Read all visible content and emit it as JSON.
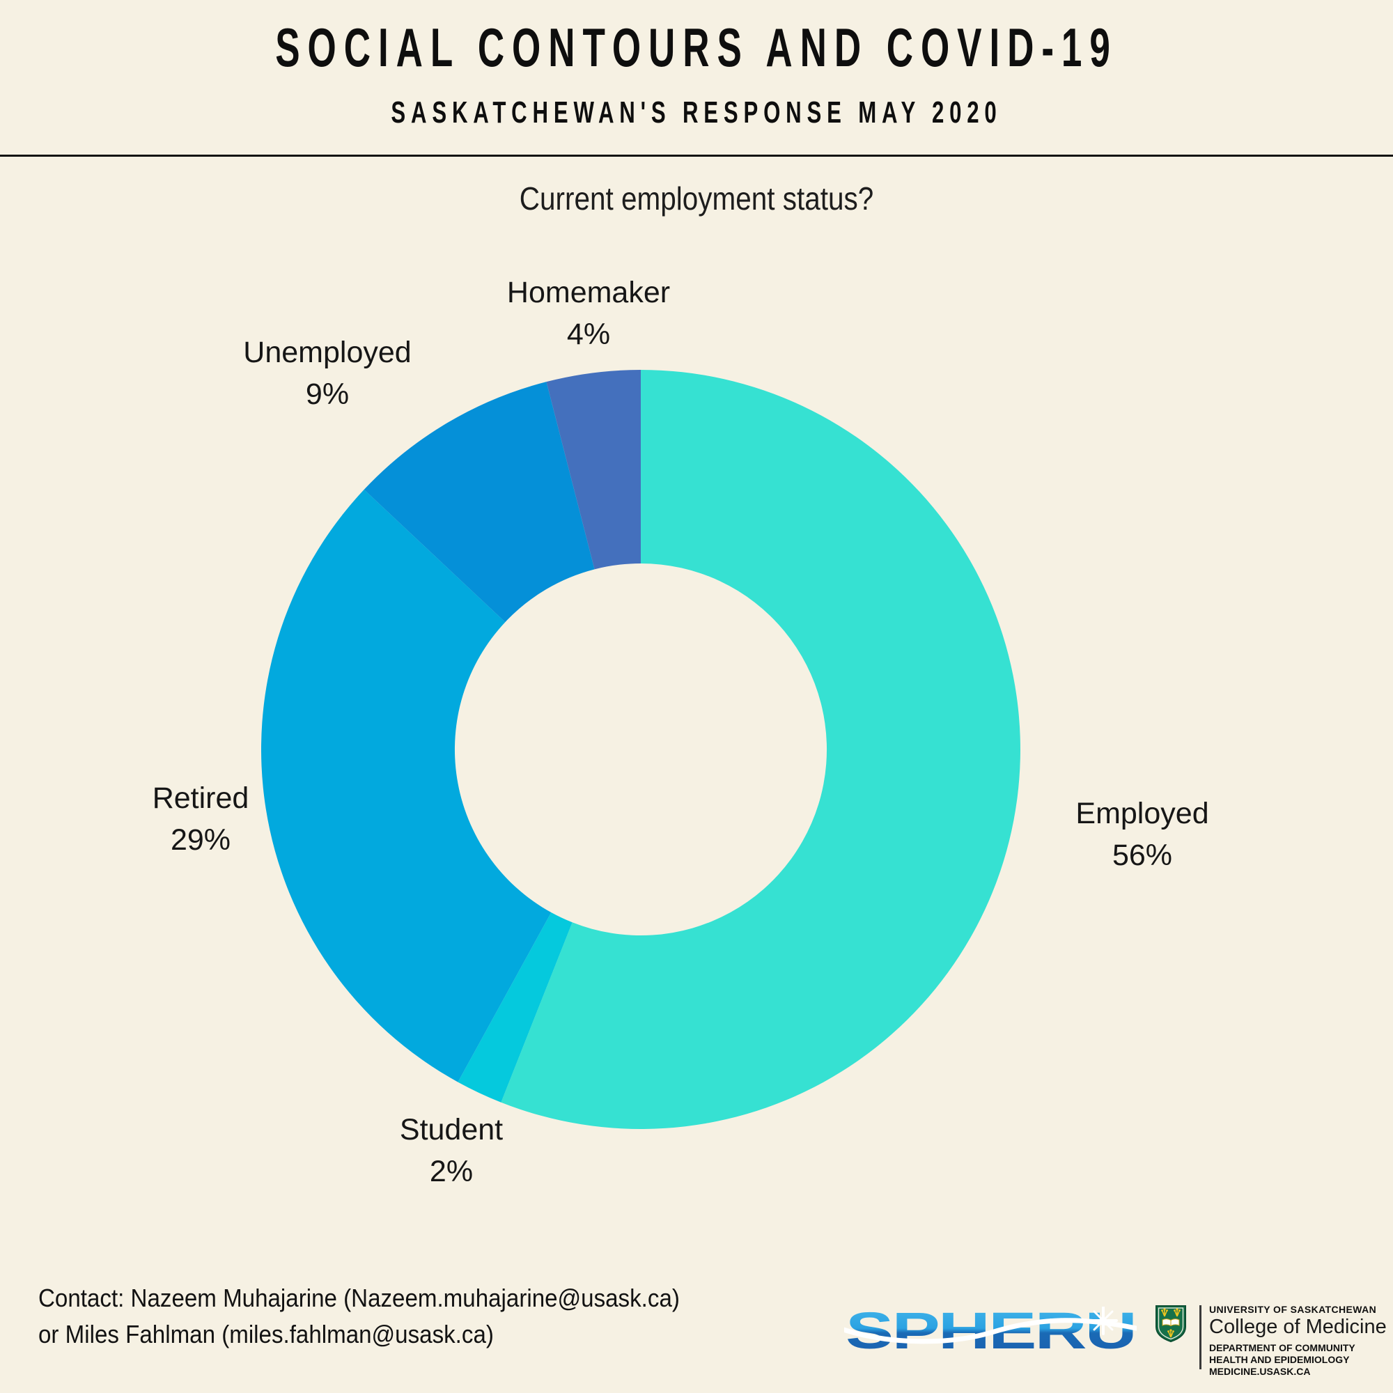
{
  "header": {
    "title": "SOCIAL CONTOURS AND COVID-19",
    "subtitle": "SASKATCHEWAN'S RESPONSE MAY 2020"
  },
  "chart_data": {
    "type": "pie",
    "donut": true,
    "title": "Current employment status?",
    "start_angle": "top",
    "direction": "clockwise",
    "hole_ratio": 0.49,
    "background": "#f6f1e3",
    "slices": [
      {
        "label": "Employed",
        "value_pct": 56,
        "pct_label": "56%",
        "color": "#36e1d2"
      },
      {
        "label": "Student",
        "value_pct": 2,
        "pct_label": "2%",
        "color": "#05c9dd"
      },
      {
        "label": "Retired",
        "value_pct": 29,
        "pct_label": "29%",
        "color": "#02a9de"
      },
      {
        "label": "Unemployed",
        "value_pct": 9,
        "pct_label": "9%",
        "color": "#0590d8"
      },
      {
        "label": "Homemaker",
        "value_pct": 4,
        "pct_label": "4%",
        "color": "#4470bd"
      }
    ]
  },
  "footer": {
    "contact_line1": "Contact: Nazeem Muhajarine (Nazeem.muhajarine@usask.ca)",
    "contact_line2": "or Miles Fahlman (miles.fahlman@usask.ca)",
    "spheru": {
      "text": "SPHERU"
    },
    "usask": {
      "university": "UNIVERSITY OF SASKATCHEWAN",
      "college": "College of Medicine",
      "dept_line1": "DEPARTMENT OF COMMUNITY",
      "dept_line2": "HEALTH AND EPIDEMIOLOGY",
      "website": "MEDICINE.USASK.CA"
    }
  },
  "colors": {
    "background": "#f6f1e3",
    "text": "#151515",
    "spheru_light_blue": "#45b7ea",
    "spheru_dark_blue": "#1b5fae",
    "crest_green": "#17714a",
    "crest_gold": "#eec41f"
  }
}
